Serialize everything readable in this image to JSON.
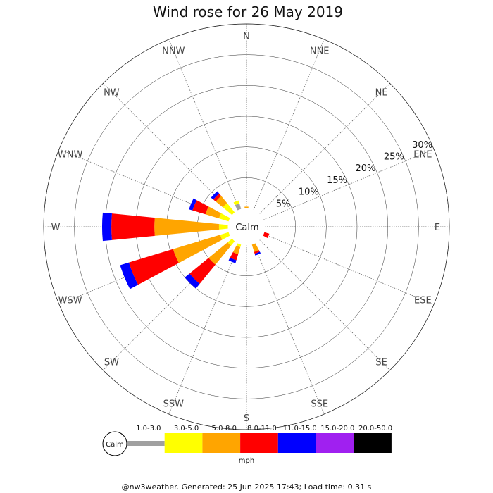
{
  "chart_data": {
    "type": "wind-rose",
    "title": "Wind rose for 26 May 2019",
    "directions": [
      "N",
      "NNE",
      "NE",
      "ENE",
      "E",
      "ESE",
      "SE",
      "SSE",
      "S",
      "SSW",
      "SW",
      "WSW",
      "W",
      "WNW",
      "NW",
      "NNW"
    ],
    "ring_labels": [
      "5%",
      "10%",
      "15%",
      "20%",
      "25%",
      "30%"
    ],
    "rlim": [
      0,
      30
    ],
    "calm_label": "Calm",
    "speed_bins": [
      {
        "label": "1.0-3.0",
        "color": "#a0a0a0"
      },
      {
        "label": "3.0-5.0",
        "color": "#ffff00"
      },
      {
        "label": "5.0-8.0",
        "color": "#ffa500"
      },
      {
        "label": "8.0-11.0",
        "color": "#ff0000"
      },
      {
        "label": "11.0-15.0",
        "color": "#0000ff"
      },
      {
        "label": "15.0-20.0",
        "color": "#a020f0"
      },
      {
        "label": "20.0-50.0",
        "color": "#000000"
      }
    ],
    "unit_label": "mph",
    "series": [
      {
        "dir": "N",
        "values": [
          0,
          0,
          0.3,
          0,
          0,
          0,
          0
        ]
      },
      {
        "dir": "NNE",
        "values": [
          0,
          0,
          0,
          0,
          0,
          0,
          0
        ]
      },
      {
        "dir": "NE",
        "values": [
          0,
          0,
          0,
          0,
          0,
          0,
          0
        ]
      },
      {
        "dir": "ENE",
        "values": [
          0,
          0,
          0,
          0,
          0,
          0,
          0
        ]
      },
      {
        "dir": "E",
        "values": [
          0,
          0,
          0,
          0,
          0,
          0,
          0
        ]
      },
      {
        "dir": "ESE",
        "values": [
          0,
          0,
          0,
          0.9,
          0,
          0,
          0
        ]
      },
      {
        "dir": "SE",
        "values": [
          0,
          0,
          0,
          0,
          0,
          0,
          0
        ]
      },
      {
        "dir": "SSE",
        "values": [
          0,
          0,
          1.3,
          0.3,
          0.3,
          0,
          0
        ]
      },
      {
        "dir": "S",
        "values": [
          0,
          0,
          0,
          0,
          0,
          0,
          0
        ]
      },
      {
        "dir": "SSW",
        "values": [
          0,
          0.5,
          1.2,
          1.0,
          0.5,
          0,
          0
        ]
      },
      {
        "dir": "SW",
        "values": [
          0,
          1.0,
          4.0,
          4.0,
          1.0,
          0,
          0
        ]
      },
      {
        "dir": "WSW",
        "values": [
          0,
          1.5,
          8.0,
          7.5,
          1.5,
          0,
          0
        ]
      },
      {
        "dir": "W",
        "values": [
          0,
          1.5,
          10.5,
          7.0,
          1.5,
          0,
          0
        ]
      },
      {
        "dir": "WNW",
        "values": [
          0,
          1.7,
          2.3,
          2.2,
          0.6,
          0,
          0
        ]
      },
      {
        "dir": "NW",
        "values": [
          0,
          2.0,
          1.5,
          0.5,
          0.5,
          0,
          0
        ]
      },
      {
        "dir": "NNW",
        "values": [
          1.0,
          0.5,
          0,
          0,
          0,
          0,
          0
        ]
      }
    ],
    "grid": true,
    "legend_position": "bottom"
  },
  "footer": "@nw3weather. Generated: 25 Jun 2025 17:43; Load time: 0.31 s"
}
